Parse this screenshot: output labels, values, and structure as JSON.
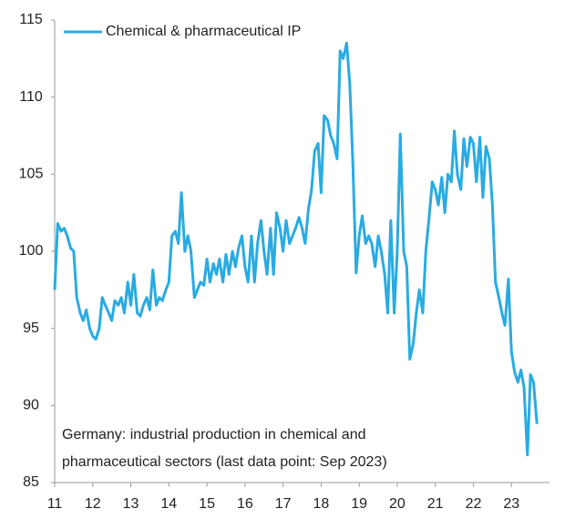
{
  "chart_data": {
    "type": "line",
    "series": [
      {
        "name": "Chemical & pharmaceutical IP",
        "color": "#29abe2",
        "values": [
          97.5,
          101.8,
          101.3,
          101.5,
          101,
          100.2,
          100,
          97,
          96,
          95.5,
          96.2,
          95,
          94.5,
          94.3,
          95,
          97,
          96.5,
          96,
          95.5,
          96.8,
          96.5,
          97,
          96,
          98,
          96.5,
          98.5,
          96,
          95.8,
          96.5,
          97,
          96.2,
          98.8,
          96.5,
          97,
          96.8,
          97.5,
          98,
          101,
          101.3,
          100.5,
          103.8,
          100,
          101,
          100,
          97,
          97.5,
          98,
          97.8,
          99.5,
          98,
          99.2,
          98.5,
          99.5,
          98,
          99.8,
          98.5,
          100,
          99,
          100.2,
          101,
          99,
          98,
          101,
          98,
          100.5,
          102,
          100,
          98.5,
          101.5,
          98.5,
          102.5,
          101.5,
          100,
          102,
          100.5,
          101,
          101.5,
          102.2,
          101.5,
          100.5,
          102.8,
          104,
          106.5,
          107,
          103.8,
          108.8,
          108.5,
          107.5,
          107,
          106,
          113,
          112.5,
          113.5,
          111,
          106,
          98.6,
          101,
          102.3,
          100.5,
          101,
          100.5,
          99,
          101,
          100,
          98.5,
          96,
          102,
          96,
          100,
          107.6,
          100,
          99,
          93,
          94,
          96,
          97.5,
          96,
          100,
          102,
          104.5,
          104,
          103,
          104.8,
          102.5,
          105,
          104.5,
          107.8,
          105,
          104,
          107.3,
          105.5,
          107.4,
          107,
          104.5,
          107.4,
          103.5,
          106.8,
          106,
          103,
          98,
          97,
          96,
          95.2,
          98.2,
          93.5,
          92.2,
          91.5,
          92.3,
          91.2,
          86.8,
          92,
          91.5,
          88.8
        ]
      }
    ],
    "x": [
      2011,
      2011.08,
      2011.17,
      2011.25,
      2011.33,
      2011.42,
      2011.5,
      2011.58,
      2011.67,
      2011.75,
      2011.83,
      2011.92,
      2012,
      2012.08,
      2012.17,
      2012.25,
      2012.33,
      2012.42,
      2012.5,
      2012.58,
      2012.67,
      2012.75,
      2012.83,
      2012.92,
      2013,
      2013.08,
      2013.17,
      2013.25,
      2013.33,
      2013.42,
      2013.5,
      2013.58,
      2013.67,
      2013.75,
      2013.83,
      2013.92,
      2014,
      2014.08,
      2014.17,
      2014.25,
      2014.33,
      2014.42,
      2014.5,
      2014.58,
      2014.67,
      2014.75,
      2014.83,
      2014.92,
      2015,
      2015.08,
      2015.17,
      2015.25,
      2015.33,
      2015.42,
      2015.5,
      2015.58,
      2015.67,
      2015.75,
      2015.83,
      2015.92,
      2016,
      2016.08,
      2016.17,
      2016.25,
      2016.33,
      2016.42,
      2016.5,
      2016.58,
      2016.67,
      2016.75,
      2016.83,
      2016.92,
      2017,
      2017.08,
      2017.17,
      2017.25,
      2017.33,
      2017.42,
      2017.5,
      2017.58,
      2017.67,
      2017.75,
      2017.83,
      2017.92,
      2018,
      2018.08,
      2018.17,
      2018.25,
      2018.33,
      2018.42,
      2018.5,
      2018.58,
      2018.67,
      2018.75,
      2018.83,
      2018.92,
      2019,
      2019.08,
      2019.17,
      2019.25,
      2019.33,
      2019.42,
      2019.5,
      2019.58,
      2019.67,
      2019.75,
      2019.83,
      2019.92,
      2020,
      2020.08,
      2020.17,
      2020.25,
      2020.33,
      2020.42,
      2020.5,
      2020.58,
      2020.67,
      2020.75,
      2020.83,
      2020.92,
      2021,
      2021.08,
      2021.17,
      2021.25,
      2021.33,
      2021.42,
      2021.5,
      2021.58,
      2021.67,
      2021.75,
      2021.83,
      2021.92,
      2022,
      2022.08,
      2022.17,
      2022.25,
      2022.33,
      2022.42,
      2022.5,
      2022.58,
      2022.67,
      2022.75,
      2022.83,
      2022.92,
      2023,
      2023.08,
      2023.17,
      2023.25,
      2023.33,
      2023.42,
      2023.5,
      2023.58,
      2023.67
    ],
    "xlim": [
      2011,
      2024
    ],
    "xticks": [
      {
        "value": 2011,
        "label": "11"
      },
      {
        "value": 2012,
        "label": "12"
      },
      {
        "value": 2013,
        "label": "13"
      },
      {
        "value": 2014,
        "label": "14"
      },
      {
        "value": 2015,
        "label": "15"
      },
      {
        "value": 2016,
        "label": "16"
      },
      {
        "value": 2017,
        "label": "17"
      },
      {
        "value": 2018,
        "label": "18"
      },
      {
        "value": 2019,
        "label": "19"
      },
      {
        "value": 2020,
        "label": "20"
      },
      {
        "value": 2021,
        "label": "21"
      },
      {
        "value": 2022,
        "label": "22"
      },
      {
        "value": 2023,
        "label": "23"
      }
    ],
    "ylim": [
      85,
      115
    ],
    "yticks": [
      85,
      90,
      95,
      100,
      105,
      110,
      115
    ],
    "grid": false,
    "legend": "top-left",
    "annotation": [
      "Germany: industrial production in chemical and",
      "pharmaceutical sectors (last data point: Sep 2023)"
    ]
  }
}
